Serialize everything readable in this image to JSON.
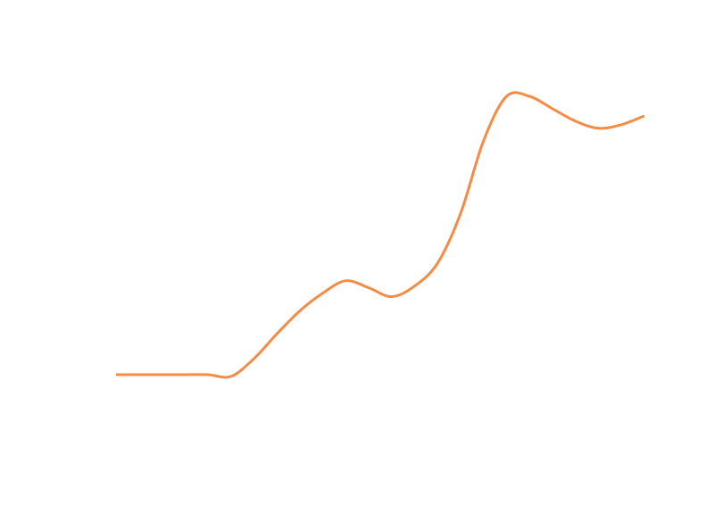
{
  "chart_data": {
    "type": "line",
    "title": "",
    "xlabel": "",
    "ylabel": "",
    "grid": false,
    "legend": "none",
    "axes_visible": false,
    "series": [
      {
        "color": "#f58b45",
        "line_style": "smooth",
        "x": [
          0,
          1,
          2,
          3,
          4,
          5,
          6,
          7,
          8,
          9,
          10,
          11,
          12,
          13,
          14,
          15,
          16,
          17,
          18,
          19,
          20,
          21,
          22,
          23
        ],
        "y": [
          0.0,
          0.0,
          0.0,
          0.0,
          0.0,
          -0.1,
          0.9,
          2.3,
          3.6,
          4.6,
          5.3,
          4.9,
          4.4,
          5.0,
          6.3,
          9.1,
          13.2,
          15.7,
          15.7,
          15.0,
          14.3,
          13.9,
          14.1,
          14.6
        ]
      }
    ]
  }
}
